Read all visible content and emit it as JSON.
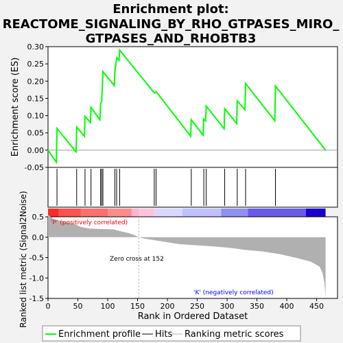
{
  "chart_data": {
    "type": "line",
    "title_lines": [
      "Enrichment plot:",
      "REACTOME_SIGNALING_BY_RHO_GTPASES_MIRO_",
      "GTPASES_AND_RHOBTB3"
    ],
    "ylabel_top": "Enrichment score (ES)",
    "ylabel_bottom": "Ranked list metric (Signal2Noise)",
    "xlabel": "Rank in Ordered Dataset",
    "colors": {
      "es_line": "#00ff00",
      "hits": "#000000",
      "metric_fill": "#b0b0b0",
      "pos_label": "#ff0000",
      "neg_label": "#0000ff",
      "zero_cross_line": "#bbbbbb"
    },
    "es_ylim": [
      -0.05,
      0.3
    ],
    "es_yticks": [
      "-0.05",
      "0.00",
      "0.05",
      "0.10",
      "0.15",
      "0.20",
      "0.25",
      "0.30"
    ],
    "es_ytick_values": [
      -0.05,
      0,
      0.05,
      0.1,
      0.15,
      0.2,
      0.25,
      0.3
    ],
    "metric_ylim": [
      -1.5,
      0.5
    ],
    "metric_yticks": [
      "-1.5",
      "-1.0",
      "-0.5",
      "0.0",
      "0.5"
    ],
    "metric_ytick_values": [
      -1.5,
      -1.0,
      -0.5,
      0.0,
      0.5
    ],
    "xlim": [
      0,
      485
    ],
    "xticks": [
      "0",
      "50",
      "100",
      "150",
      "200",
      "250",
      "300",
      "350",
      "400",
      "450"
    ],
    "xtick_values": [
      0,
      50,
      100,
      150,
      200,
      250,
      300,
      350,
      400,
      450
    ],
    "n_genes": 465,
    "hits": [
      15,
      48,
      62,
      72,
      88,
      90,
      92,
      112,
      115,
      120,
      178,
      181,
      240,
      261,
      265,
      296,
      317,
      331,
      381
    ],
    "es_points": [
      [
        0,
        0
      ],
      [
        14,
        -0.035
      ],
      [
        15,
        0.063
      ],
      [
        47,
        -0.005
      ],
      [
        48,
        0.067
      ],
      [
        61,
        0.04
      ],
      [
        62,
        0.098
      ],
      [
        71,
        0.08
      ],
      [
        72,
        0.124
      ],
      [
        87,
        0.088
      ],
      [
        88,
        0.135
      ],
      [
        90,
        0.14
      ],
      [
        92,
        0.228
      ],
      [
        111,
        0.187
      ],
      [
        112,
        0.228
      ],
      [
        115,
        0.268
      ],
      [
        119,
        0.26
      ],
      [
        120,
        0.29
      ],
      [
        177,
        0.168
      ],
      [
        178,
        0.166
      ],
      [
        181,
        0.17
      ],
      [
        239,
        0.04
      ],
      [
        240,
        0.088
      ],
      [
        260,
        0.043
      ],
      [
        261,
        0.09
      ],
      [
        264,
        0.085
      ],
      [
        265,
        0.128
      ],
      [
        295,
        0.062
      ],
      [
        296,
        0.12
      ],
      [
        316,
        0.077
      ],
      [
        317,
        0.143
      ],
      [
        330,
        0.117
      ],
      [
        331,
        0.193
      ],
      [
        380,
        0.085
      ],
      [
        381,
        0.186
      ],
      [
        465,
        0
      ]
    ],
    "metric_points": [
      [
        0,
        0.55
      ],
      [
        10,
        0.44
      ],
      [
        20,
        0.4
      ],
      [
        30,
        0.37
      ],
      [
        45,
        0.32
      ],
      [
        55,
        0.25
      ],
      [
        70,
        0.21
      ],
      [
        90,
        0.2
      ],
      [
        110,
        0.19
      ],
      [
        120,
        0.15
      ],
      [
        135,
        0.1
      ],
      [
        145,
        0.05
      ],
      [
        152,
        0
      ],
      [
        160,
        -0.03
      ],
      [
        190,
        -0.1
      ],
      [
        220,
        -0.17
      ],
      [
        250,
        -0.2
      ],
      [
        280,
        -0.23
      ],
      [
        310,
        -0.27
      ],
      [
        330,
        -0.31
      ],
      [
        360,
        -0.35
      ],
      [
        390,
        -0.42
      ],
      [
        420,
        -0.52
      ],
      [
        440,
        -0.6
      ],
      [
        455,
        -0.72
      ],
      [
        460,
        -0.88
      ],
      [
        463,
        -1.12
      ],
      [
        465,
        -1.45
      ]
    ],
    "heat_segments": [
      {
        "from": 0,
        "to": 18,
        "color": "#ff2a2a"
      },
      {
        "from": 18,
        "to": 55,
        "color": "#ff5050"
      },
      {
        "from": 55,
        "to": 100,
        "color": "#ff6f6f"
      },
      {
        "from": 100,
        "to": 140,
        "color": "#ff8c8c"
      },
      {
        "from": 140,
        "to": 152,
        "color": "#ffb4c8"
      },
      {
        "from": 152,
        "to": 178,
        "color": "#ffc4dc"
      },
      {
        "from": 178,
        "to": 225,
        "color": "#d8d8ff"
      },
      {
        "from": 225,
        "to": 290,
        "color": "#c0c0ff"
      },
      {
        "from": 290,
        "to": 335,
        "color": "#9090f0"
      },
      {
        "from": 335,
        "to": 432,
        "color": "#6a5ae8"
      },
      {
        "from": 432,
        "to": 465,
        "color": "#1a00cc"
      }
    ],
    "pos_label": "'P' (positively correlated)",
    "neg_label": "'K' (negatively correlated)",
    "zero_cross_label": "Zero cross at 152",
    "zero_cross_rank": 152,
    "legend": {
      "es": "Enrichment profile",
      "hits": "Hits",
      "metric": "Ranking metric scores"
    }
  }
}
